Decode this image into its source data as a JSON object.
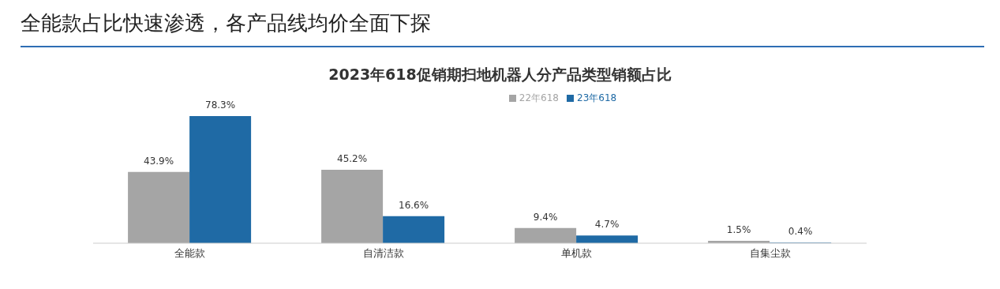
{
  "chart_data": {
    "type": "bar",
    "title": "全能款占比快速渗透，各产品线均价全面下探",
    "subtitle": "2023年618促销期扫地机器人分产品类型销额占比",
    "categories": [
      "全能款",
      "自清洁款",
      "单机款",
      "自集尘款"
    ],
    "series": [
      {
        "name": "22年618",
        "color": "#a5a5a5",
        "values": [
          43.9,
          45.2,
          9.4,
          1.5
        ],
        "value_labels": [
          "43.9%",
          "45.2%",
          "9.4%",
          "1.5%"
        ]
      },
      {
        "name": "23年618",
        "color": "#1f6aa5",
        "values": [
          78.3,
          16.6,
          4.7,
          0.4
        ],
        "value_labels": [
          "78.3%",
          "16.6%",
          "4.7%",
          "0.4%"
        ]
      }
    ],
    "legend": "top",
    "grid": false
  }
}
